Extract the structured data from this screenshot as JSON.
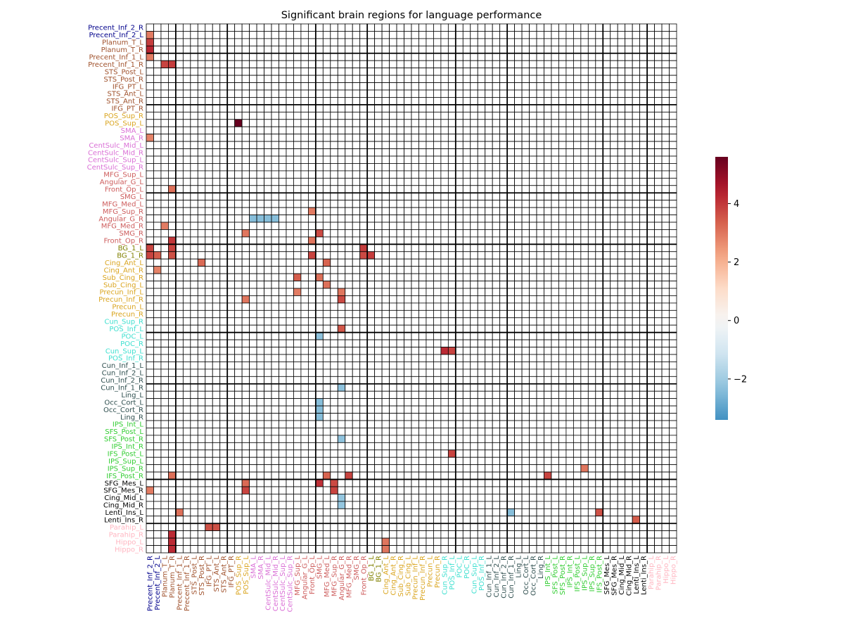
{
  "chart_data": {
    "type": "heatmap",
    "title": "Significant brain regions for language performance",
    "rows": [
      "Precent_Inf_2_R",
      "Precent_Inf_2_L",
      "Planum_T_L",
      "Planum_T_R",
      "Precent_Inf_1_L",
      "Precent_Inf_1_R",
      "STS_Post_L",
      "STS_Post_R",
      "IFG_PT_L",
      "STS_Ant_L",
      "STS_Ant_R",
      "IFG_PT_R",
      "POS_Sup_R",
      "POS_Sup_L",
      "SMA_L",
      "SMA_R",
      "CentSulc_Mid_L",
      "CentSulc_Mid_R",
      "CentSulc_Sup_L",
      "CentSulc_Sup_R",
      "MFG_Sup_L",
      "Angular_G_L",
      "Front_Op_L",
      "SMG_L",
      "MFG_Med_L",
      "MFG_Sup_R",
      "Angular_G_R",
      "MFG_Med_R",
      "SMG_R",
      "Front_Op_R",
      "BG_1_L",
      "BG_1_R",
      "Cing_Ant_L",
      "Cing_Ant_R",
      "Sub_Cing_R",
      "Sub_Cing_L",
      "Precun_Inf_L",
      "Precun_Inf_R",
      "Precun_L",
      "Precun_R",
      "Cun_Sup_R",
      "POS_Inf_L",
      "POC_L",
      "POC_R",
      "Cun_Sup_L",
      "POS_Inf_R",
      "Cun_Inf_1_L",
      "Cun_Inf_2_L",
      "Cun_Inf_2_R",
      "Cun_Inf_1_R",
      "Ling_L",
      "Occ_Cort_L",
      "Occ_Cort_R",
      "Ling_R",
      "IPS_Int_L",
      "SFS_Post_L",
      "SFS_Post_R",
      "IPS_Int_R",
      "IFS_Post_L",
      "IPS_Sup_L",
      "IPS_Sup_R",
      "IFS_Post_R",
      "SFG_Mes_L",
      "SFG_Mes_R",
      "Cing_Mid_L",
      "Cing_Mid_R",
      "Lenti_Ins_L",
      "Lenti_Ins_R",
      "Parahip_L",
      "Parahip_R",
      "Hippo_L",
      "Hippo_R"
    ],
    "columns": [
      "Precent_Inf_2_R",
      "Precent_Inf_2_L",
      "Planum_T_L",
      "Planum_T_R",
      "Precent_Inf_1_L",
      "Precent_Inf_1_R",
      "STS_Post_L",
      "STS_Post_R",
      "IFG_PT_L",
      "STS_Ant_L",
      "STS_Ant_R",
      "IFG_PT_R",
      "POS_Sup_R",
      "POS_Sup_L",
      "SMA_L",
      "SMA_R",
      "CentSulc_Mid_L",
      "CentSulc_Mid_R",
      "CentSulc_Sup_L",
      "CentSulc_Sup_R",
      "MFG_Sup_L",
      "Angular_G_L",
      "Front_Op_L",
      "SMG_L",
      "MFG_Med_L",
      "MFG_Sup_R",
      "Angular_G_R",
      "MFG_Med_R",
      "SMG_R",
      "Front_Op_R",
      "BG_1_L",
      "BG_1_R",
      "Cing_Ant_L",
      "Cing_Ant_R",
      "Sub_Cing_R",
      "Sub_Cing_L",
      "Precun_Inf_L",
      "Precun_Inf_R",
      "Precun_L",
      "Precun_R",
      "Cun_Sup_R",
      "POS_Inf_L",
      "POC_L",
      "POC_R",
      "Cun_Sup_L",
      "POS_Inf_R",
      "Cun_Inf_1_L",
      "Cun_Inf_2_L",
      "Cun_Inf_2_R",
      "Cun_Inf_1_R",
      "Ling_L",
      "Occ_Cort_L",
      "Occ_Cort_R",
      "Ling_R",
      "IPS_Int_L",
      "SFS_Post_L",
      "SFS_Post_R",
      "IPS_Int_R",
      "IFS_Post_L",
      "IPS_Sup_L",
      "IPS_Sup_R",
      "IFS_Post_R",
      "SFG_Mes_L",
      "SFG_Mes_R",
      "Cing_Mid_L",
      "Cing_Mid_R",
      "Lenti_Ins_L",
      "Lenti_Ins_R",
      "Parahip_L",
      "Parahip_R",
      "Hippo_L",
      "Hippo_R"
    ],
    "row_label_colors": [
      "#00008b",
      "#00008b",
      "#a0522d",
      "#a0522d",
      "#a0522d",
      "#a0522d",
      "#a0522d",
      "#a0522d",
      "#a0522d",
      "#a0522d",
      "#a0522d",
      "#a0522d",
      "#daa520",
      "#daa520",
      "#da70d6",
      "#da70d6",
      "#da70d6",
      "#da70d6",
      "#da70d6",
      "#da70d6",
      "#cd5c5c",
      "#cd5c5c",
      "#cd5c5c",
      "#cd5c5c",
      "#cd5c5c",
      "#cd5c5c",
      "#cd5c5c",
      "#cd5c5c",
      "#cd5c5c",
      "#cd5c5c",
      "#808000",
      "#808000",
      "#daa520",
      "#daa520",
      "#daa520",
      "#daa520",
      "#daa520",
      "#daa520",
      "#daa520",
      "#daa520",
      "#40e0d0",
      "#40e0d0",
      "#40e0d0",
      "#40e0d0",
      "#40e0d0",
      "#40e0d0",
      "#2f4f4f",
      "#2f4f4f",
      "#2f4f4f",
      "#2f4f4f",
      "#2f4f4f",
      "#2f4f4f",
      "#2f4f4f",
      "#2f4f4f",
      "#32cd32",
      "#32cd32",
      "#32cd32",
      "#32cd32",
      "#32cd32",
      "#32cd32",
      "#32cd32",
      "#32cd32",
      "#000000",
      "#000000",
      "#000000",
      "#000000",
      "#000000",
      "#000000",
      "#ffb6c1",
      "#ffb6c1",
      "#ffb6c1",
      "#ffb6c1"
    ],
    "group_boundaries": [
      4,
      11,
      23,
      30,
      42,
      49,
      62,
      68
    ],
    "cells": [
      {
        "row": "Precent_Inf_2_L",
        "col": "Precent_Inf_2_R",
        "value": 2.9
      },
      {
        "row": "Planum_T_L",
        "col": "Precent_Inf_2_R",
        "value": 3.9
      },
      {
        "row": "Planum_T_R",
        "col": "Precent_Inf_2_R",
        "value": 4.3
      },
      {
        "row": "Precent_Inf_1_L",
        "col": "Precent_Inf_2_R",
        "value": 2.9
      },
      {
        "row": "Precent_Inf_1_R",
        "col": "Planum_T_L",
        "value": 3.8
      },
      {
        "row": "Precent_Inf_1_R",
        "col": "Planum_T_R",
        "value": 3.9
      },
      {
        "row": "POS_Sup_L",
        "col": "POS_Sup_R",
        "value": 5.6
      },
      {
        "row": "SMA_R",
        "col": "Precent_Inf_2_R",
        "value": 2.8
      },
      {
        "row": "Front_Op_L",
        "col": "Planum_T_R",
        "value": 3.1
      },
      {
        "row": "MFG_Sup_R",
        "col": "Front_Op_L",
        "value": 2.9
      },
      {
        "row": "Angular_G_R",
        "col": "SMA_L",
        "value": -2.4
      },
      {
        "row": "Angular_G_R",
        "col": "SMA_R",
        "value": -2.4
      },
      {
        "row": "Angular_G_R",
        "col": "CentSulc_Mid_L",
        "value": -2.4
      },
      {
        "row": "Angular_G_R",
        "col": "CentSulc_Mid_R",
        "value": -2.4
      },
      {
        "row": "MFG_Med_R",
        "col": "Planum_T_L",
        "value": 2.9
      },
      {
        "row": "SMG_R",
        "col": "POS_Sup_L",
        "value": 3.0
      },
      {
        "row": "SMG_R",
        "col": "SMG_L",
        "value": 3.7
      },
      {
        "row": "Front_Op_R",
        "col": "Planum_T_R",
        "value": 4.0
      },
      {
        "row": "Front_Op_R",
        "col": "Front_Op_L",
        "value": 3.0
      },
      {
        "row": "BG_1_L",
        "col": "Precent_Inf_2_R",
        "value": 3.8
      },
      {
        "row": "BG_1_L",
        "col": "Planum_T_R",
        "value": 3.8
      },
      {
        "row": "BG_1_L",
        "col": "Front_Op_R",
        "value": 3.9
      },
      {
        "row": "BG_1_R",
        "col": "Precent_Inf_2_R",
        "value": 3.8
      },
      {
        "row": "BG_1_R",
        "col": "Precent_Inf_2_L",
        "value": 3.4
      },
      {
        "row": "BG_1_R",
        "col": "Planum_T_R",
        "value": 3.6
      },
      {
        "row": "BG_1_R",
        "col": "Front_Op_L",
        "value": 3.8
      },
      {
        "row": "BG_1_R",
        "col": "Front_Op_R",
        "value": 3.7
      },
      {
        "row": "BG_1_R",
        "col": "BG_1_L",
        "value": 3.9
      },
      {
        "row": "Cing_Ant_L",
        "col": "STS_Post_R",
        "value": 3.2
      },
      {
        "row": "Cing_Ant_L",
        "col": "MFG_Med_L",
        "value": 3.3
      },
      {
        "row": "Cing_Ant_R",
        "col": "Precent_Inf_2_L",
        "value": 2.8
      },
      {
        "row": "Sub_Cing_R",
        "col": "MFG_Sup_L",
        "value": 3.4
      },
      {
        "row": "Sub_Cing_R",
        "col": "SMG_L",
        "value": 3.1
      },
      {
        "row": "Sub_Cing_L",
        "col": "MFG_Med_L",
        "value": 3.1
      },
      {
        "row": "Precun_Inf_L",
        "col": "MFG_Sup_L",
        "value": 2.9
      },
      {
        "row": "Precun_Inf_L",
        "col": "Angular_G_R",
        "value": 3.0
      },
      {
        "row": "Precun_Inf_R",
        "col": "POS_Sup_L",
        "value": 3.0
      },
      {
        "row": "Precun_Inf_R",
        "col": "Angular_G_R",
        "value": 3.7
      },
      {
        "row": "POS_Inf_L",
        "col": "Angular_G_R",
        "value": 3.5
      },
      {
        "row": "POC_L",
        "col": "SMG_L",
        "value": -2.3
      },
      {
        "row": "Cun_Sup_L",
        "col": "Cun_Sup_R",
        "value": 4.2
      },
      {
        "row": "Cun_Sup_L",
        "col": "POS_Inf_L",
        "value": 3.8
      },
      {
        "row": "Cun_Inf_1_R",
        "col": "Angular_G_R",
        "value": -2.3
      },
      {
        "row": "Occ_Cort_L",
        "col": "SMG_L",
        "value": -2.4
      },
      {
        "row": "Occ_Cort_R",
        "col": "SMG_L",
        "value": -2.4
      },
      {
        "row": "Ling_R",
        "col": "SMG_L",
        "value": -2.4
      },
      {
        "row": "SFS_Post_R",
        "col": "Angular_G_R",
        "value": -2.3
      },
      {
        "row": "IFS_Post_L",
        "col": "POS_Inf_L",
        "value": 3.8
      },
      {
        "row": "IPS_Sup_R",
        "col": "IPS_Sup_L",
        "value": 3.0
      },
      {
        "row": "IFS_Post_R",
        "col": "Planum_T_R",
        "value": 3.1
      },
      {
        "row": "IFS_Post_R",
        "col": "MFG_Med_L",
        "value": 3.3
      },
      {
        "row": "IFS_Post_R",
        "col": "MFG_Med_R",
        "value": 3.8
      },
      {
        "row": "IFS_Post_R",
        "col": "IPS_Int_L",
        "value": 3.8
      },
      {
        "row": "SFG_Mes_L",
        "col": "POS_Sup_L",
        "value": 3.2
      },
      {
        "row": "SFG_Mes_L",
        "col": "SMG_L",
        "value": 4.1
      },
      {
        "row": "SFG_Mes_L",
        "col": "MFG_Sup_R",
        "value": 3.7
      },
      {
        "row": "SFG_Mes_R",
        "col": "Precent_Inf_2_R",
        "value": 2.9
      },
      {
        "row": "SFG_Mes_R",
        "col": "POS_Sup_L",
        "value": 3.8
      },
      {
        "row": "SFG_Mes_R",
        "col": "MFG_Sup_R",
        "value": 3.8
      },
      {
        "row": "Cing_Mid_L",
        "col": "Angular_G_R",
        "value": -2.2
      },
      {
        "row": "Cing_Mid_R",
        "col": "Angular_G_R",
        "value": -2.2
      },
      {
        "row": "Lenti_Ins_L",
        "col": "Precent_Inf_1_L",
        "value": 3.1
      },
      {
        "row": "Lenti_Ins_L",
        "col": "Cun_Inf_1_R",
        "value": -2.4
      },
      {
        "row": "Lenti_Ins_L",
        "col": "IFS_Post_R",
        "value": 3.6
      },
      {
        "row": "Lenti_Ins_R",
        "col": "Lenti_Ins_L",
        "value": 3.4
      },
      {
        "row": "Parahip_L",
        "col": "IFG_PT_L",
        "value": 3.6
      },
      {
        "row": "Parahip_L",
        "col": "STS_Ant_L",
        "value": 3.6
      },
      {
        "row": "Parahip_R",
        "col": "Planum_T_R",
        "value": 4.2
      },
      {
        "row": "Hippo_L",
        "col": "Planum_T_R",
        "value": 4.2
      },
      {
        "row": "Hippo_L",
        "col": "Cing_Ant_L",
        "value": 3.0
      },
      {
        "row": "Hippo_R",
        "col": "Planum_T_R",
        "value": 4.2
      },
      {
        "row": "Hippo_R",
        "col": "Cing_Ant_L",
        "value": 3.0
      }
    ],
    "colormap": "RdBu_r",
    "vmin": -3.4,
    "vmax": 5.6,
    "colorbar": {
      "ticks": [
        -2,
        0,
        2,
        4
      ],
      "tick_labels": [
        "−2",
        "0",
        "2",
        "4"
      ]
    }
  }
}
